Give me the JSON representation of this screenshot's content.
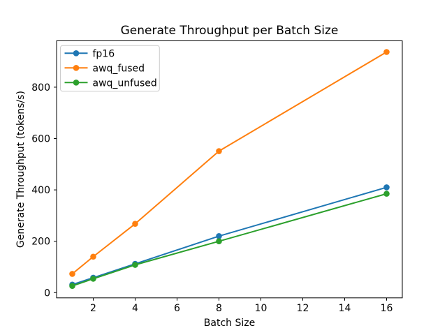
{
  "figure": {
    "background": "#ffffff",
    "text_color": "#000000",
    "legend_frame_color": "#cccccc"
  },
  "chart_data": {
    "type": "line",
    "title": "Generate Throughput per Batch Size",
    "xlabel": "Batch Size",
    "ylabel": "Generate Throughput (tokens/s)",
    "x": [
      1,
      2,
      4,
      8,
      16
    ],
    "series": [
      {
        "name": "fp16",
        "color": "#1f77b4",
        "values": [
          31,
          58,
          112,
          220,
          410
        ]
      },
      {
        "name": "awq_fused",
        "color": "#ff7f0e",
        "values": [
          73,
          140,
          268,
          551,
          937
        ]
      },
      {
        "name": "awq_unfused",
        "color": "#2ca02c",
        "values": [
          26,
          54,
          108,
          200,
          385
        ]
      }
    ],
    "marker": "o",
    "xticks": [
      2,
      4,
      6,
      8,
      10,
      12,
      14,
      16
    ],
    "yticks": [
      0,
      200,
      400,
      600,
      800
    ],
    "xlim": [
      0.25,
      16.75
    ],
    "ylim": [
      -20.5,
      980.5
    ],
    "grid": false,
    "legend_position": "upper left"
  }
}
